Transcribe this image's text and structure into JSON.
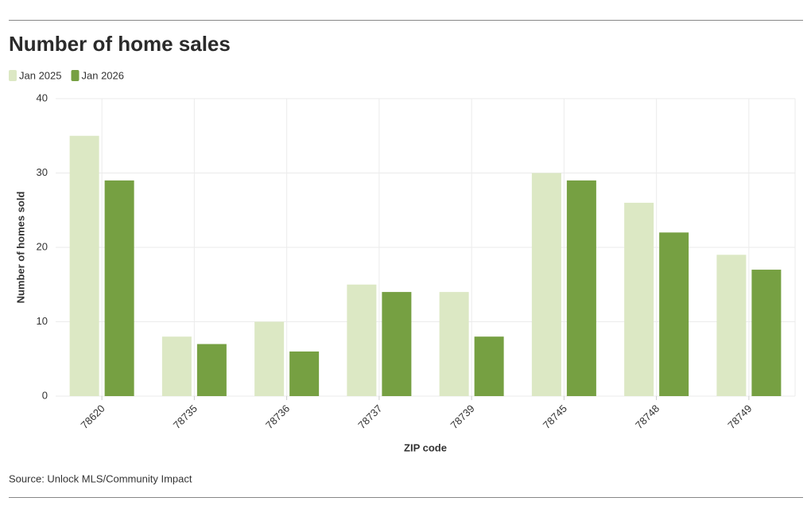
{
  "chart_data": {
    "type": "bar",
    "title": "Number of home sales",
    "x_label": "ZIP code",
    "y_label": "Number of homes sold",
    "source": "Source: Unlock MLS/Community Impact",
    "categories": [
      "78620",
      "78735",
      "78736",
      "78737",
      "78739",
      "78745",
      "78748",
      "78749"
    ],
    "series": [
      {
        "name": "Jan 2025",
        "color": "#dce8c4",
        "values": [
          35,
          8,
          10,
          15,
          14,
          30,
          26,
          19
        ]
      },
      {
        "name": "Jan 2026",
        "color": "#76a042",
        "values": [
          29,
          7,
          6,
          14,
          8,
          29,
          22,
          17
        ]
      }
    ],
    "ylim": [
      0,
      40
    ],
    "yticks": [
      0,
      10,
      20,
      30,
      40
    ],
    "grid": true
  }
}
